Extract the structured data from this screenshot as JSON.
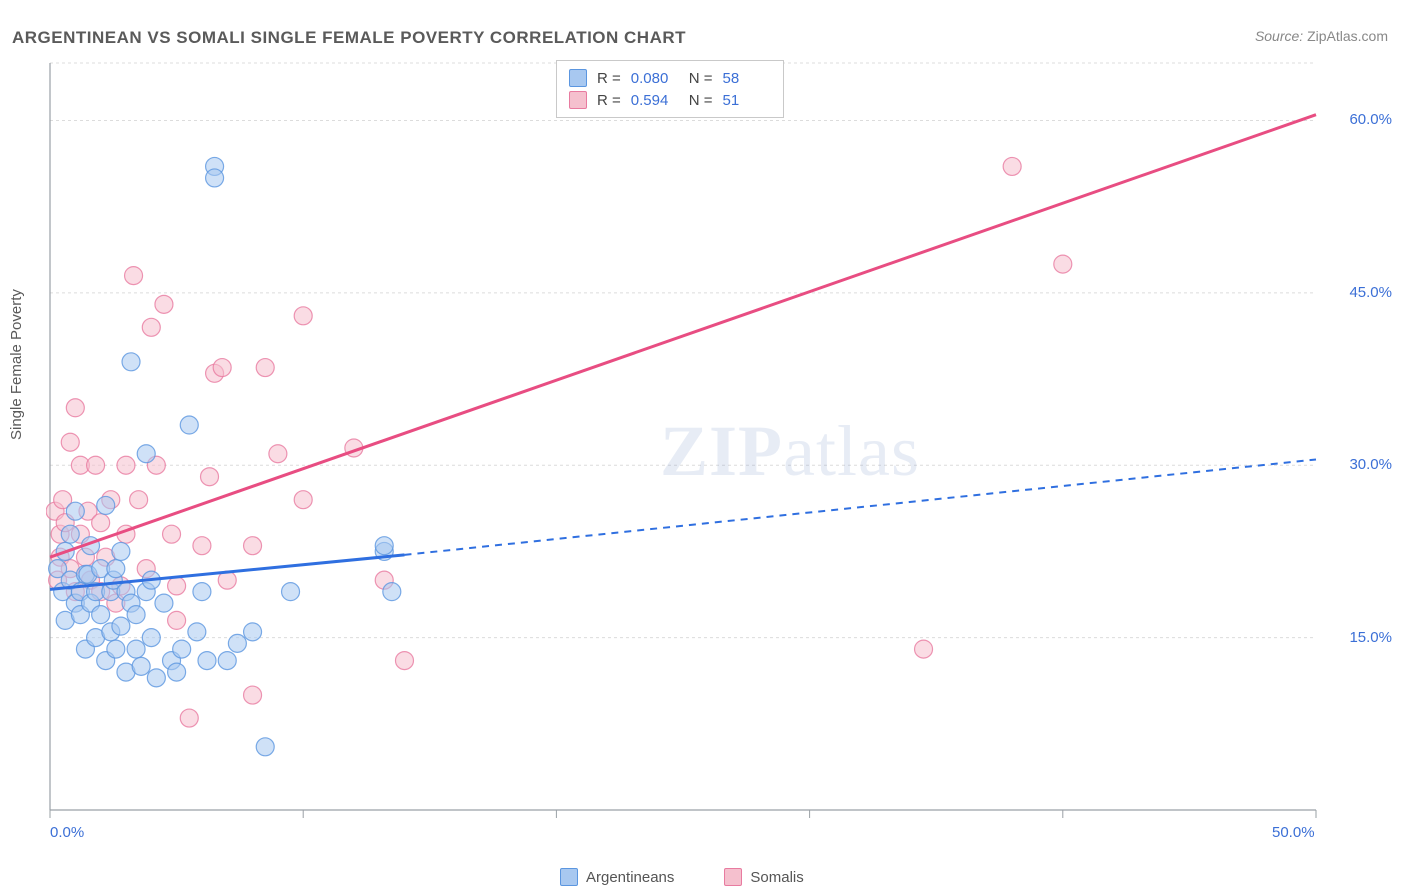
{
  "title": "ARGENTINEAN VS SOMALI SINGLE FEMALE POVERTY CORRELATION CHART",
  "source_label": "Source:",
  "source_value": "ZipAtlas.com",
  "y_axis_label": "Single Female Poverty",
  "watermark": {
    "zip": "ZIP",
    "atlas": "atlas"
  },
  "colors": {
    "series_a_fill": "#a8c8f0",
    "series_a_stroke": "#5b96e0",
    "series_b_fill": "#f5c0ce",
    "series_b_stroke": "#e87ba0",
    "axis_line": "#9aa0a6",
    "grid": "#dcdcdc",
    "tick_text": "#3b6fd6",
    "text": "#5a5a5a",
    "trend_a": "#2f6fe0",
    "trend_b": "#e84d82"
  },
  "chart": {
    "type": "scatter",
    "point_radius": 9,
    "point_opacity": 0.55,
    "xlim": [
      0,
      50
    ],
    "ylim": [
      0,
      65
    ],
    "x_ticks": [
      0,
      10,
      20,
      30,
      40,
      50
    ],
    "x_tick_labels": {
      "0": "0.0%",
      "50": "50.0%"
    },
    "y_ticks": [
      15,
      30,
      45,
      60
    ],
    "y_tick_labels": {
      "15": "15.0%",
      "30": "30.0%",
      "45": "45.0%",
      "60": "60.0%"
    },
    "grid_y": [
      15,
      30,
      45,
      60,
      65
    ],
    "trend_lines": {
      "a": {
        "x1": 0,
        "y1": 19.2,
        "x2_solid": 14,
        "y2_solid": 22.2,
        "x2_dash": 50,
        "y2_dash": 30.5
      },
      "b": {
        "x1": 0,
        "y1": 22.0,
        "x2": 50,
        "y2": 60.5
      }
    }
  },
  "correlation_legend": {
    "rows": [
      {
        "swatch_fill": "#a8c8f0",
        "swatch_stroke": "#5b96e0",
        "r_label": "R =",
        "r": "0.080",
        "n_label": "N =",
        "n": "58"
      },
      {
        "swatch_fill": "#f5c0ce",
        "swatch_stroke": "#e87ba0",
        "r_label": "R =",
        "r": "0.594",
        "n_label": "N =",
        "n": "51"
      }
    ]
  },
  "bottom_legend": [
    {
      "swatch_fill": "#a8c8f0",
      "swatch_stroke": "#5b96e0",
      "label": "Argentineans"
    },
    {
      "swatch_fill": "#f5c0ce",
      "swatch_stroke": "#e87ba0",
      "label": "Somalis"
    }
  ],
  "series": {
    "argentineans": [
      [
        0.3,
        21
      ],
      [
        0.5,
        19
      ],
      [
        0.6,
        22.5
      ],
      [
        0.6,
        16.5
      ],
      [
        0.8,
        20
      ],
      [
        0.8,
        24
      ],
      [
        1.0,
        18
      ],
      [
        1.0,
        26
      ],
      [
        1.2,
        19
      ],
      [
        1.2,
        17
      ],
      [
        1.4,
        20.5
      ],
      [
        1.4,
        14
      ],
      [
        1.5,
        20.5
      ],
      [
        1.6,
        18
      ],
      [
        1.6,
        23
      ],
      [
        1.8,
        19
      ],
      [
        1.8,
        15
      ],
      [
        2.0,
        21
      ],
      [
        2.0,
        17
      ],
      [
        2.2,
        13
      ],
      [
        2.2,
        26.5
      ],
      [
        2.4,
        19
      ],
      [
        2.4,
        15.5
      ],
      [
        2.5,
        20
      ],
      [
        2.6,
        14
      ],
      [
        2.6,
        21
      ],
      [
        2.8,
        16
      ],
      [
        2.8,
        22.5
      ],
      [
        3.0,
        12
      ],
      [
        3.0,
        19
      ],
      [
        3.2,
        18
      ],
      [
        3.2,
        39
      ],
      [
        3.4,
        17
      ],
      [
        3.4,
        14
      ],
      [
        3.6,
        12.5
      ],
      [
        3.8,
        19
      ],
      [
        3.8,
        31
      ],
      [
        4.0,
        15
      ],
      [
        4.0,
        20
      ],
      [
        4.2,
        11.5
      ],
      [
        4.5,
        18
      ],
      [
        4.8,
        13
      ],
      [
        5.0,
        12
      ],
      [
        5.2,
        14
      ],
      [
        5.5,
        33.5
      ],
      [
        5.8,
        15.5
      ],
      [
        6.0,
        19
      ],
      [
        6.2,
        13
      ],
      [
        6.5,
        56
      ],
      [
        6.5,
        55
      ],
      [
        7.0,
        13
      ],
      [
        7.4,
        14.5
      ],
      [
        8.0,
        15.5
      ],
      [
        8.5,
        5.5
      ],
      [
        9.5,
        19
      ],
      [
        13.2,
        22.5
      ],
      [
        13.2,
        23
      ],
      [
        13.5,
        19
      ]
    ],
    "somalis": [
      [
        0.2,
        26
      ],
      [
        0.3,
        20
      ],
      [
        0.4,
        24
      ],
      [
        0.4,
        22
      ],
      [
        0.5,
        27
      ],
      [
        0.6,
        25
      ],
      [
        0.8,
        21
      ],
      [
        0.8,
        32
      ],
      [
        1.0,
        19
      ],
      [
        1.0,
        35
      ],
      [
        1.2,
        24
      ],
      [
        1.2,
        30
      ],
      [
        1.4,
        22
      ],
      [
        1.5,
        26
      ],
      [
        1.6,
        20
      ],
      [
        1.8,
        30
      ],
      [
        2.0,
        25
      ],
      [
        2.0,
        19
      ],
      [
        2.2,
        22
      ],
      [
        2.4,
        27
      ],
      [
        2.6,
        18
      ],
      [
        2.8,
        19.5
      ],
      [
        3.0,
        30
      ],
      [
        3.0,
        24
      ],
      [
        3.3,
        46.5
      ],
      [
        3.5,
        27
      ],
      [
        3.8,
        21
      ],
      [
        4.0,
        42
      ],
      [
        4.2,
        30
      ],
      [
        4.5,
        44
      ],
      [
        4.8,
        24
      ],
      [
        5.0,
        19.5
      ],
      [
        5.0,
        16.5
      ],
      [
        5.5,
        8
      ],
      [
        6.0,
        23
      ],
      [
        6.3,
        29
      ],
      [
        6.5,
        38
      ],
      [
        6.8,
        38.5
      ],
      [
        7.0,
        20
      ],
      [
        8.0,
        23
      ],
      [
        8.0,
        10
      ],
      [
        8.5,
        38.5
      ],
      [
        9.0,
        31
      ],
      [
        10.0,
        43
      ],
      [
        10.0,
        27
      ],
      [
        12.0,
        31.5
      ],
      [
        13.2,
        20
      ],
      [
        14.0,
        13
      ],
      [
        34.5,
        14
      ],
      [
        38.0,
        56
      ],
      [
        40.0,
        47.5
      ]
    ]
  }
}
